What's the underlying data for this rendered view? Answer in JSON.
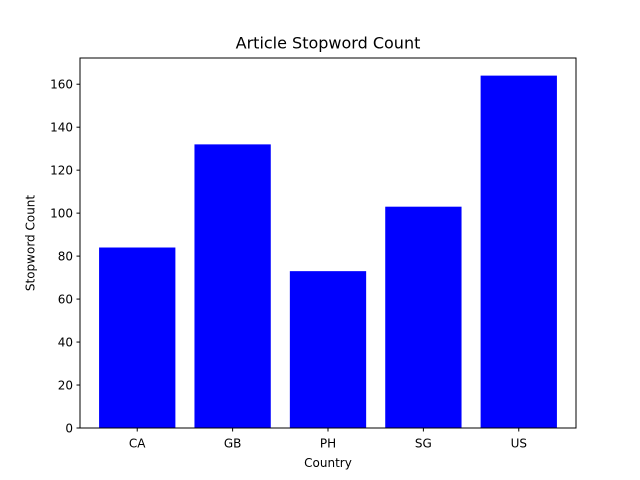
{
  "chart_data": {
    "type": "bar",
    "title": "Article Stopword Count",
    "xlabel": "Country",
    "ylabel": "Stopword Count",
    "categories": [
      "CA",
      "GB",
      "PH",
      "SG",
      "US"
    ],
    "values": [
      84,
      132,
      73,
      103,
      164
    ],
    "ylim": [
      0,
      172.2
    ],
    "yticks": [
      0,
      20,
      40,
      60,
      80,
      100,
      120,
      140,
      160
    ],
    "grid": false,
    "bar_color": "#0000ff"
  }
}
